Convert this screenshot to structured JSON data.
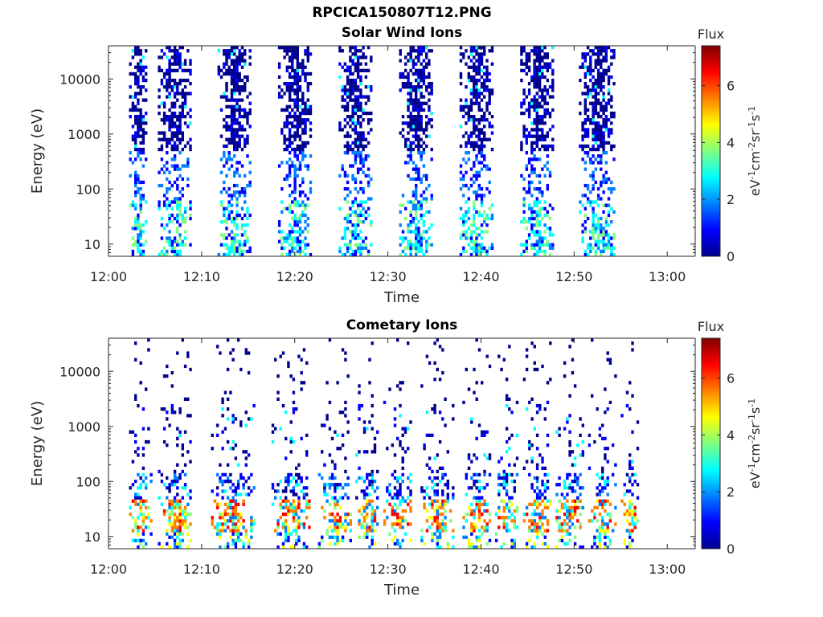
{
  "figure": {
    "title": "RPCICA150807T12.PNG"
  },
  "colormap": [
    "#00008f",
    "#0000ff",
    "#0080ff",
    "#00ffff",
    "#80ff80",
    "#ffff00",
    "#ff8000",
    "#ff0000",
    "#800000"
  ],
  "chart_data": [
    {
      "type": "heatmap",
      "title": "Solar Wind Ions",
      "xlabel": "Time",
      "ylabel": "Energy (eV)",
      "x_ticks": [
        "12:00",
        "12:10",
        "12:20",
        "12:30",
        "12:40",
        "12:50",
        "13:00"
      ],
      "x_range_minutes": [
        0,
        63
      ],
      "y_scale": "log",
      "y_ticks": [
        "10",
        "100",
        "1000",
        "10000"
      ],
      "y_range": [
        6,
        40000
      ],
      "colorbar": {
        "title": "Flux",
        "label": "eV-1cm-2sr-1s-1",
        "ticks": [
          "0",
          "2",
          "4",
          "6"
        ],
        "range": [
          0,
          7.4
        ]
      },
      "scan_intervals_minutes": [
        [
          2.2,
          4.0
        ],
        [
          5.3,
          8.8
        ],
        [
          11.7,
          15.2
        ],
        [
          18.2,
          21.7
        ],
        [
          24.7,
          28.2
        ],
        [
          31.2,
          34.7
        ],
        [
          37.7,
          41.2
        ],
        [
          44.2,
          47.7
        ],
        [
          50.5,
          54.2
        ]
      ],
      "high_energy_band": true
    },
    {
      "type": "heatmap",
      "title": "Cometary Ions",
      "xlabel": "Time",
      "ylabel": "Energy (eV)",
      "x_ticks": [
        "12:00",
        "12:10",
        "12:20",
        "12:30",
        "12:40",
        "12:50",
        "13:00"
      ],
      "x_range_minutes": [
        0,
        63
      ],
      "y_scale": "log",
      "y_ticks": [
        "10",
        "100",
        "1000",
        "10000"
      ],
      "y_range": [
        6,
        40000
      ],
      "colorbar": {
        "title": "Flux",
        "label": "eV-1cm-2sr-1s-1",
        "ticks": [
          "0",
          "2",
          "4",
          "6"
        ],
        "range": [
          0,
          7.4
        ]
      },
      "scan_intervals_minutes": [
        [
          2.2,
          4.5
        ],
        [
          5.3,
          8.8
        ],
        [
          11.0,
          15.5
        ],
        [
          17.5,
          21.5
        ],
        [
          22.5,
          26.0
        ],
        [
          26.5,
          29.0
        ],
        [
          29.5,
          32.5
        ],
        [
          33.5,
          37.0
        ],
        [
          38.0,
          41.0
        ],
        [
          41.5,
          44.0
        ],
        [
          44.5,
          47.5
        ],
        [
          48.0,
          51.0
        ],
        [
          51.5,
          54.5
        ],
        [
          55.0,
          56.8
        ]
      ],
      "high_energy_band": false
    }
  ]
}
